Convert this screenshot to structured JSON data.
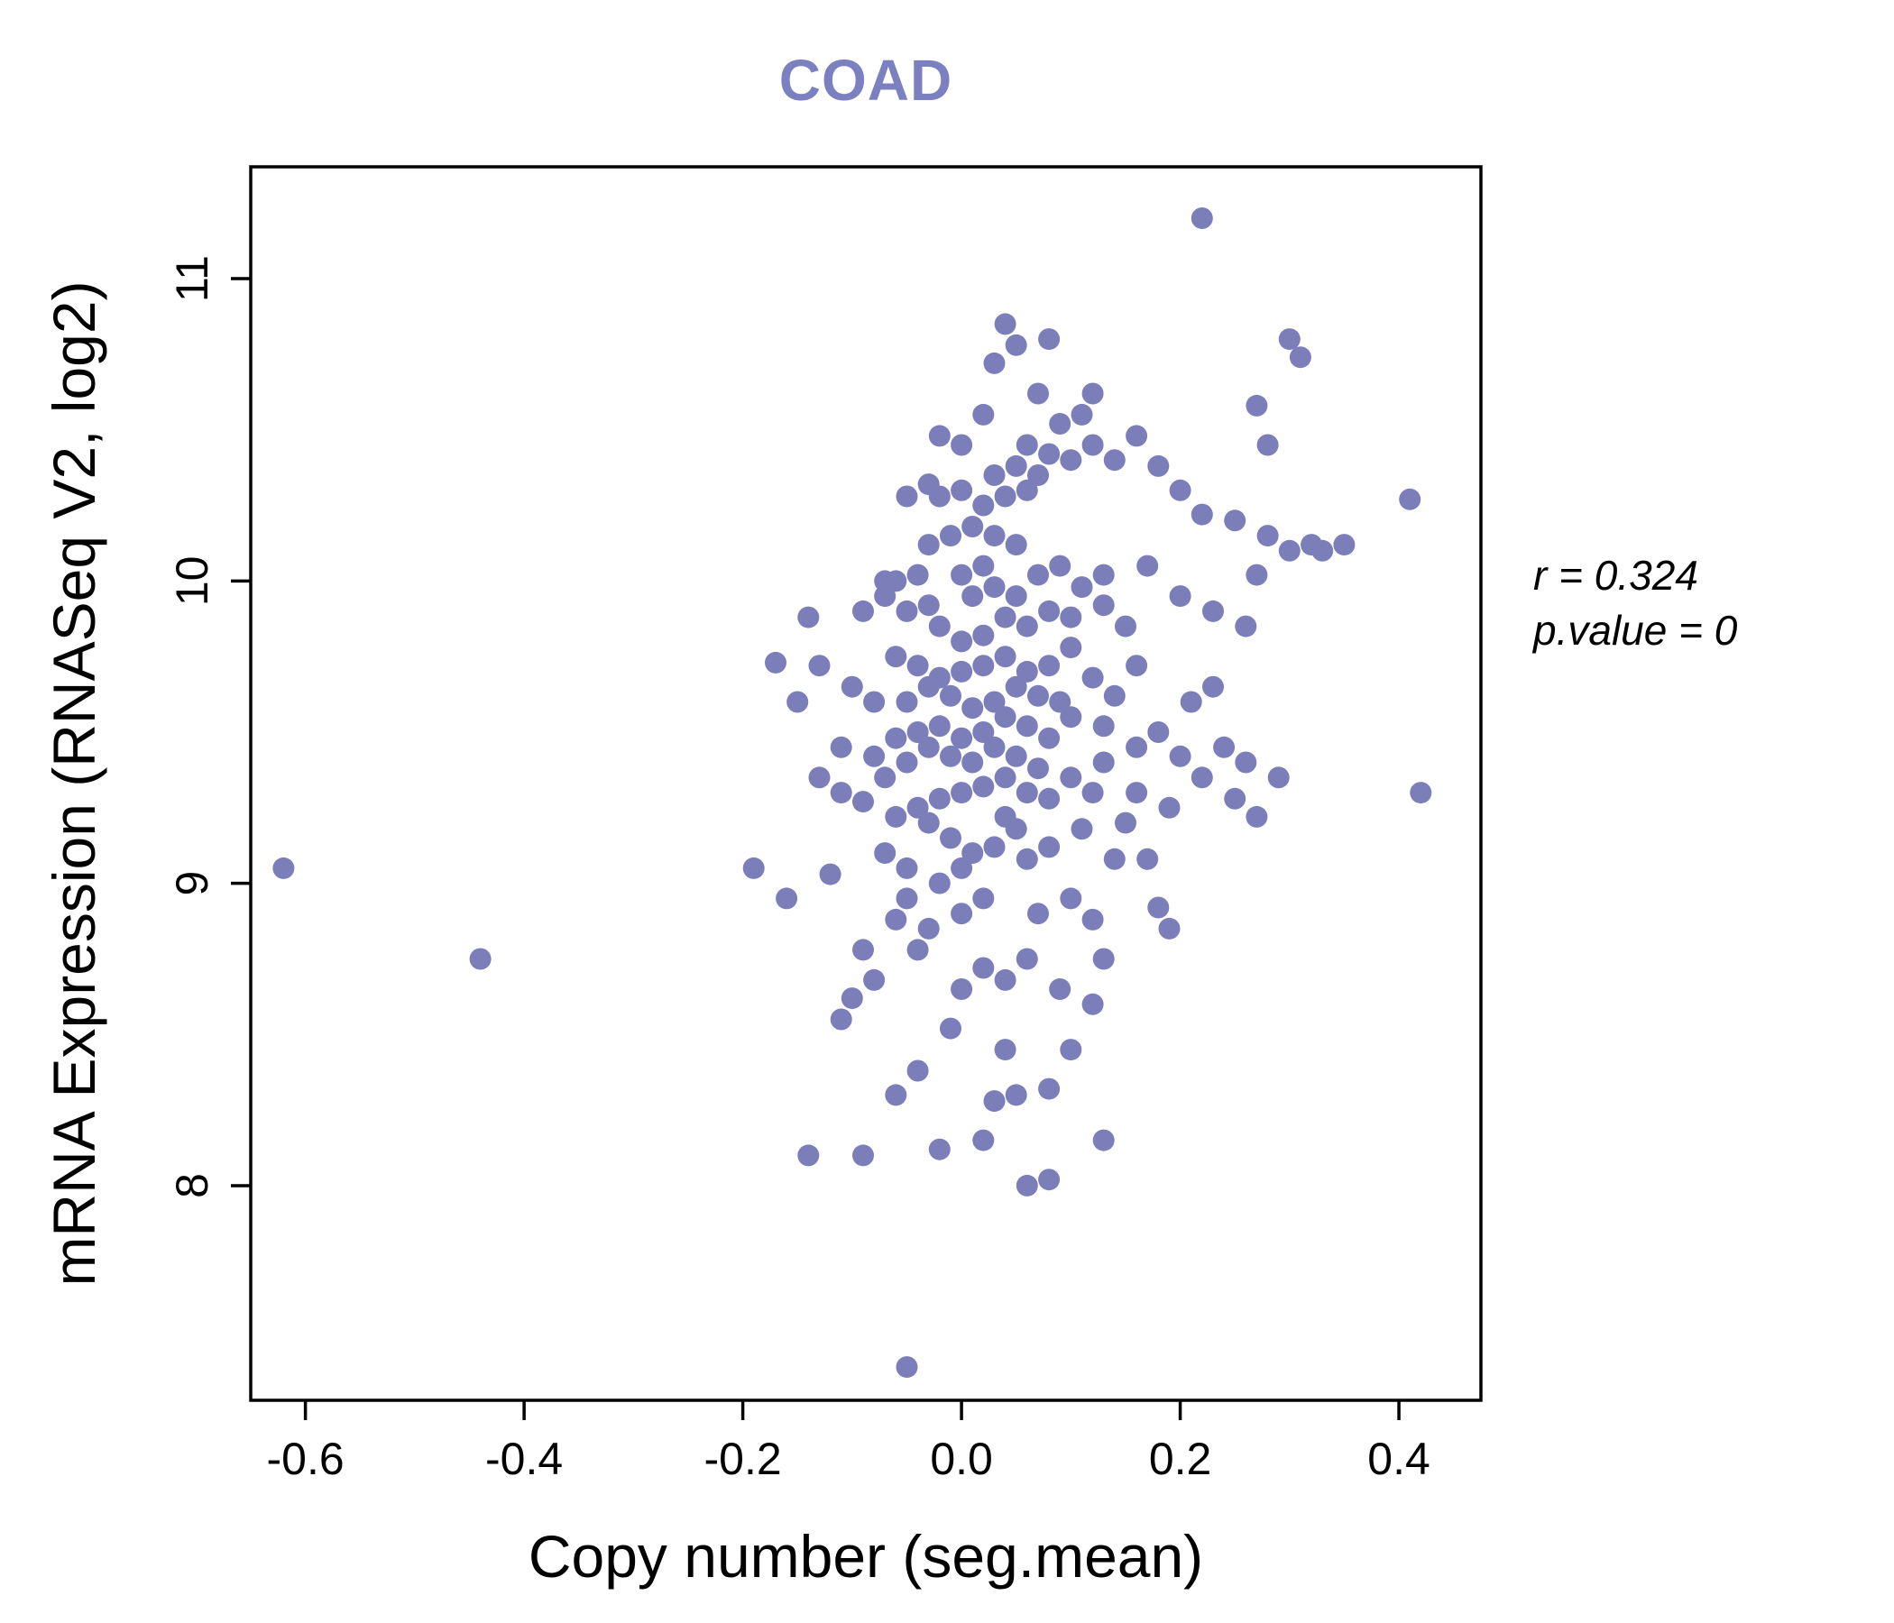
{
  "chart_data": {
    "type": "scatter",
    "title": "COAD",
    "title_color": "#7b80c0",
    "xlabel": "Copy number (seg.mean)",
    "ylabel": "mRNA Expression (RNASeq V2, log2)",
    "annotation": {
      "r": "r = 0.324",
      "p": "p.value = 0"
    },
    "point_color": "#7b7eb8",
    "xlim": [
      -0.65,
      0.475
    ],
    "ylim": [
      7.29,
      11.37
    ],
    "xticks": [
      -0.6,
      -0.4,
      -0.2,
      0.0,
      0.2,
      0.4
    ],
    "xtick_labels": [
      "-0.6",
      "-0.4",
      "-0.2",
      "0.0",
      "0.2",
      "0.4"
    ],
    "yticks": [
      8,
      9,
      10,
      11
    ],
    "ytick_labels": [
      "8",
      "9",
      "10",
      "11"
    ],
    "grid": false,
    "legend": "none",
    "points": [
      [
        -0.62,
        9.05
      ],
      [
        -0.44,
        8.75
      ],
      [
        0.22,
        11.2
      ],
      [
        0.41,
        10.27
      ],
      [
        0.42,
        9.3
      ],
      [
        -0.05,
        7.4
      ],
      [
        -0.19,
        9.05
      ],
      [
        -0.16,
        8.95
      ],
      [
        -0.14,
        9.88
      ],
      [
        -0.13,
        9.72
      ],
      [
        -0.12,
        9.03
      ],
      [
        -0.14,
        8.1
      ],
      [
        -0.1,
        8.62
      ],
      [
        -0.09,
        8.78
      ],
      [
        -0.11,
        8.55
      ],
      [
        -0.08,
        8.68
      ],
      [
        -0.17,
        9.73
      ],
      [
        -0.15,
        9.6
      ],
      [
        -0.13,
        9.35
      ],
      [
        -0.11,
        9.3
      ],
      [
        -0.09,
        9.27
      ],
      [
        -0.11,
        9.45
      ],
      [
        -0.1,
        9.65
      ],
      [
        -0.08,
        9.6
      ],
      [
        -0.09,
        9.9
      ],
      [
        -0.07,
        10.0
      ],
      [
        -0.06,
        8.3
      ],
      [
        -0.04,
        8.38
      ],
      [
        -0.02,
        8.12
      ],
      [
        0.02,
        8.15
      ],
      [
        0.13,
        8.15
      ],
      [
        0.06,
        8.0
      ],
      [
        0.08,
        8.02
      ],
      [
        -0.09,
        8.1
      ],
      [
        0.05,
        8.3
      ],
      [
        0.03,
        8.28
      ],
      [
        0.04,
        8.45
      ],
      [
        -0.01,
        8.52
      ],
      [
        0.0,
        8.65
      ],
      [
        0.02,
        8.72
      ],
      [
        0.06,
        8.75
      ],
      [
        0.04,
        8.68
      ],
      [
        0.09,
        8.65
      ],
      [
        0.13,
        8.75
      ],
      [
        0.12,
        8.88
      ],
      [
        0.1,
        8.95
      ],
      [
        0.14,
        9.08
      ],
      [
        0.18,
        8.92
      ],
      [
        0.07,
        8.9
      ],
      [
        -0.03,
        8.85
      ],
      [
        -0.04,
        8.78
      ],
      [
        -0.06,
        8.88
      ],
      [
        -0.05,
        8.95
      ],
      [
        -0.02,
        9.0
      ],
      [
        0.0,
        9.05
      ],
      [
        0.01,
        9.1
      ],
      [
        0.03,
        9.12
      ],
      [
        0.05,
        9.18
      ],
      [
        -0.01,
        9.15
      ],
      [
        -0.03,
        9.2
      ],
      [
        -0.06,
        9.22
      ],
      [
        -0.04,
        9.25
      ],
      [
        -0.02,
        9.28
      ],
      [
        0.0,
        9.3
      ],
      [
        0.02,
        9.32
      ],
      [
        0.04,
        9.35
      ],
      [
        0.06,
        9.3
      ],
      [
        0.08,
        9.28
      ],
      [
        0.1,
        9.35
      ],
      [
        0.12,
        9.3
      ],
      [
        0.07,
        9.38
      ],
      [
        0.05,
        9.42
      ],
      [
        0.03,
        9.45
      ],
      [
        0.01,
        9.4
      ],
      [
        -0.01,
        9.42
      ],
      [
        -0.03,
        9.45
      ],
      [
        -0.05,
        9.4
      ],
      [
        -0.07,
        9.35
      ],
      [
        -0.08,
        9.42
      ],
      [
        -0.06,
        9.48
      ],
      [
        -0.04,
        9.5
      ],
      [
        -0.02,
        9.52
      ],
      [
        0.0,
        9.48
      ],
      [
        0.02,
        9.5
      ],
      [
        0.04,
        9.55
      ],
      [
        0.06,
        9.52
      ],
      [
        0.08,
        9.48
      ],
      [
        0.1,
        9.55
      ],
      [
        0.13,
        9.52
      ],
      [
        0.16,
        9.45
      ],
      [
        0.18,
        9.5
      ],
      [
        0.2,
        9.42
      ],
      [
        0.22,
        9.35
      ],
      [
        0.25,
        9.28
      ],
      [
        0.27,
        9.22
      ],
      [
        0.09,
        9.6
      ],
      [
        0.07,
        9.62
      ],
      [
        0.05,
        9.65
      ],
      [
        0.03,
        9.6
      ],
      [
        0.01,
        9.58
      ],
      [
        -0.01,
        9.62
      ],
      [
        -0.03,
        9.65
      ],
      [
        -0.05,
        9.6
      ],
      [
        -0.02,
        9.68
      ],
      [
        0.0,
        9.7
      ],
      [
        0.02,
        9.72
      ],
      [
        0.04,
        9.75
      ],
      [
        0.06,
        9.7
      ],
      [
        0.08,
        9.72
      ],
      [
        0.1,
        9.78
      ],
      [
        0.12,
        9.68
      ],
      [
        0.14,
        9.62
      ],
      [
        0.16,
        9.72
      ],
      [
        -0.04,
        9.72
      ],
      [
        -0.06,
        9.75
      ],
      [
        0.0,
        9.8
      ],
      [
        0.02,
        9.82
      ],
      [
        -0.02,
        9.85
      ],
      [
        0.04,
        9.88
      ],
      [
        0.06,
        9.85
      ],
      [
        0.08,
        9.9
      ],
      [
        0.1,
        9.88
      ],
      [
        -0.05,
        9.9
      ],
      [
        -0.03,
        9.92
      ],
      [
        0.01,
        9.95
      ],
      [
        0.03,
        9.98
      ],
      [
        0.05,
        9.95
      ],
      [
        -0.07,
        9.95
      ],
      [
        -0.06,
        10.0
      ],
      [
        -0.04,
        10.02
      ],
      [
        0.0,
        10.02
      ],
      [
        0.02,
        10.05
      ],
      [
        0.07,
        10.02
      ],
      [
        0.09,
        10.05
      ],
      [
        0.13,
        10.02
      ],
      [
        0.17,
        10.05
      ],
      [
        0.2,
        9.95
      ],
      [
        0.23,
        9.9
      ],
      [
        0.26,
        9.85
      ],
      [
        0.3,
        10.1
      ],
      [
        0.32,
        10.12
      ],
      [
        0.28,
        10.15
      ],
      [
        0.25,
        10.2
      ],
      [
        0.27,
        10.02
      ],
      [
        0.22,
        10.22
      ],
      [
        0.2,
        10.3
      ],
      [
        0.05,
        10.12
      ],
      [
        0.03,
        10.15
      ],
      [
        0.01,
        10.18
      ],
      [
        -0.01,
        10.15
      ],
      [
        -0.03,
        10.12
      ],
      [
        0.02,
        10.25
      ],
      [
        0.04,
        10.28
      ],
      [
        0.06,
        10.3
      ],
      [
        0.0,
        10.3
      ],
      [
        -0.02,
        10.28
      ],
      [
        0.03,
        10.35
      ],
      [
        0.05,
        10.38
      ],
      [
        0.07,
        10.35
      ],
      [
        0.08,
        10.42
      ],
      [
        0.06,
        10.45
      ],
      [
        0.1,
        10.4
      ],
      [
        0.12,
        10.45
      ],
      [
        0.14,
        10.4
      ],
      [
        0.16,
        10.48
      ],
      [
        -0.03,
        10.32
      ],
      [
        -0.05,
        10.28
      ],
      [
        0.09,
        10.52
      ],
      [
        0.11,
        10.55
      ],
      [
        0.18,
        10.38
      ],
      [
        0.0,
        10.45
      ],
      [
        -0.02,
        10.48
      ],
      [
        0.02,
        10.55
      ],
      [
        0.07,
        10.62
      ],
      [
        0.12,
        10.62
      ],
      [
        0.03,
        10.72
      ],
      [
        0.05,
        10.78
      ],
      [
        0.08,
        10.8
      ],
      [
        0.04,
        10.85
      ],
      [
        0.3,
        10.8
      ],
      [
        0.31,
        10.74
      ],
      [
        0.27,
        10.58
      ],
      [
        0.28,
        10.45
      ],
      [
        0.33,
        10.1
      ],
      [
        0.35,
        10.12
      ],
      [
        0.15,
        9.2
      ],
      [
        0.17,
        9.08
      ],
      [
        0.19,
        8.85
      ],
      [
        0.21,
        9.6
      ],
      [
        0.23,
        9.65
      ],
      [
        0.15,
        9.85
      ],
      [
        0.13,
        9.92
      ],
      [
        0.11,
        9.98
      ],
      [
        0.24,
        9.45
      ],
      [
        0.26,
        9.4
      ],
      [
        0.29,
        9.35
      ],
      [
        0.12,
        8.6
      ],
      [
        0.1,
        8.45
      ],
      [
        0.08,
        8.32
      ],
      [
        0.0,
        8.9
      ],
      [
        0.02,
        8.95
      ],
      [
        0.16,
        9.3
      ],
      [
        0.19,
        9.25
      ],
      [
        0.06,
        9.08
      ],
      [
        0.08,
        9.12
      ],
      [
        -0.07,
        9.1
      ],
      [
        -0.05,
        9.05
      ],
      [
        0.04,
        9.22
      ],
      [
        0.11,
        9.18
      ],
      [
        0.13,
        9.4
      ]
    ]
  }
}
